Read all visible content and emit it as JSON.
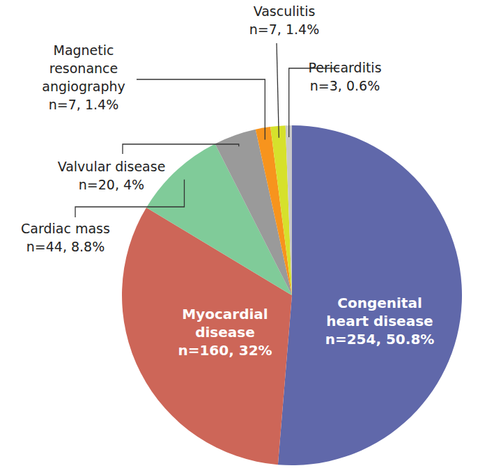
{
  "chart_data": {
    "type": "pie",
    "categories": [
      "Congenital heart disease",
      "Myocardial disease",
      "Cardiac mass",
      "Valvular disease",
      "Magnetic resonance angiography",
      "Vasculitis",
      "Pericarditis"
    ],
    "values": [
      50.8,
      32,
      8.8,
      4,
      1.4,
      1.4,
      0.6
    ],
    "value_labels": [
      "n=254, 50.8%",
      "n=160, 32%",
      "n=44, 8.8%",
      "n=20, 4%",
      "n=7, 1.4%",
      "n=7, 1.4%",
      "n=3, 0.6%"
    ],
    "colors": [
      "#6068aa",
      "#cd6658",
      "#80cb99",
      "#9a9a9a",
      "#f7941d",
      "#d6e12c",
      "#c9c9c9"
    ],
    "data_labels": true
  }
}
